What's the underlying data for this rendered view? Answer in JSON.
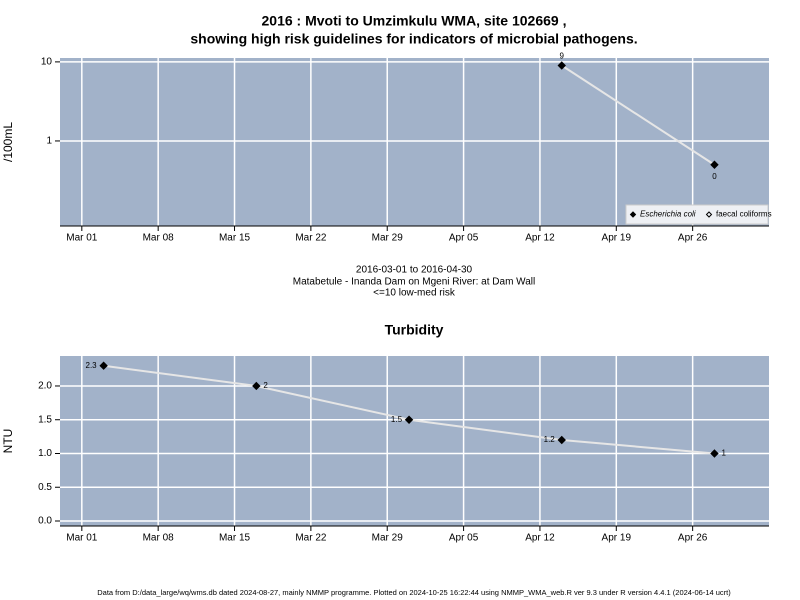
{
  "chart_data": [
    {
      "type": "line",
      "title": "2016 : Mvoti to Umzimkulu WMA, site 102669 ,",
      "subtitle": "showing high risk guidelines for indicators of microbial pathogens.",
      "y_label": "/100mL",
      "annotations": [
        "2016-03-01 to 2016-04-30",
        "Matabetule - Inanda Dam on Mgeni River: at Dam Wall",
        "<=10 low-med risk"
      ],
      "x": [
        "2016-04-14",
        "2016-04-28"
      ],
      "series": [
        {
          "name": "Escherichia coli",
          "color": "#000000",
          "marker": "filled",
          "values": [
            9,
            0.5
          ],
          "value_labels": [
            "9",
            "0"
          ]
        },
        {
          "name": "faecal coliforms",
          "color": "#000000",
          "marker": "open",
          "values": [
            null,
            null
          ]
        }
      ],
      "line_color": "#e6e6e6",
      "background": "#a2b2c9",
      "log_scale": true,
      "ylim": [
        0.084,
        11.2
      ],
      "yticks": [
        10,
        1
      ],
      "xlim": [
        "2016-02-28",
        "2016-05-03"
      ],
      "xticks": [
        {
          "value": "2016-03-01",
          "label": "Mar 01"
        },
        {
          "value": "2016-03-08",
          "label": "Mar 08"
        },
        {
          "value": "2016-03-15",
          "label": "Mar 15"
        },
        {
          "value": "2016-03-22",
          "label": "Mar 22"
        },
        {
          "value": "2016-03-29",
          "label": "Mar 29"
        },
        {
          "value": "2016-04-05",
          "label": "Apr 05"
        },
        {
          "value": "2016-04-12",
          "label": "Apr 12"
        },
        {
          "value": "2016-04-19",
          "label": "Apr 19"
        },
        {
          "value": "2016-04-26",
          "label": "Apr 26"
        }
      ],
      "grid": true,
      "legend": "lower right"
    },
    {
      "type": "line",
      "title": "Turbidity",
      "y_label": "NTU",
      "x": [
        "2016-03-03",
        "2016-03-17",
        "2016-03-31",
        "2016-04-14",
        "2016-04-28"
      ],
      "series": [
        {
          "name": "Turbidity",
          "color": "#000000",
          "marker": "filled",
          "values": [
            2.3,
            2,
            1.5,
            1.2,
            1
          ]
        }
      ],
      "line_color": "#e6e6e6",
      "background": "#a2b2c9",
      "log_scale": false,
      "ylim": [
        -0.074,
        2.444
      ],
      "yticks": [
        {
          "value": 0,
          "label": "0.0"
        },
        {
          "value": 0.5,
          "label": "0.5"
        },
        {
          "value": 1,
          "label": "1.0"
        },
        {
          "value": 1.5,
          "label": "1.5"
        },
        {
          "value": 2,
          "label": "2.0"
        }
      ],
      "xlim": [
        "2016-02-28",
        "2016-05-03"
      ],
      "xticks": [
        {
          "value": "2016-03-01",
          "label": "Mar 01"
        },
        {
          "value": "2016-03-08",
          "label": "Mar 08"
        },
        {
          "value": "2016-03-15",
          "label": "Mar 15"
        },
        {
          "value": "2016-03-22",
          "label": "Mar 22"
        },
        {
          "value": "2016-03-29",
          "label": "Mar 29"
        },
        {
          "value": "2016-04-05",
          "label": "Apr 05"
        },
        {
          "value": "2016-04-12",
          "label": "Apr 12"
        },
        {
          "value": "2016-04-19",
          "label": "Apr 19"
        },
        {
          "value": "2016-04-26",
          "label": "Apr 26"
        }
      ],
      "grid": true
    }
  ],
  "footer": "Data from D:/data_large/wq/wms.db dated 2024-08-27, mainly NMMP programme. Plotted on 2024-10-25 16:22:44 using NMMP_WMA_web.R ver 9.3 under R version 4.4.1 (2024-06-14 ucrt)"
}
